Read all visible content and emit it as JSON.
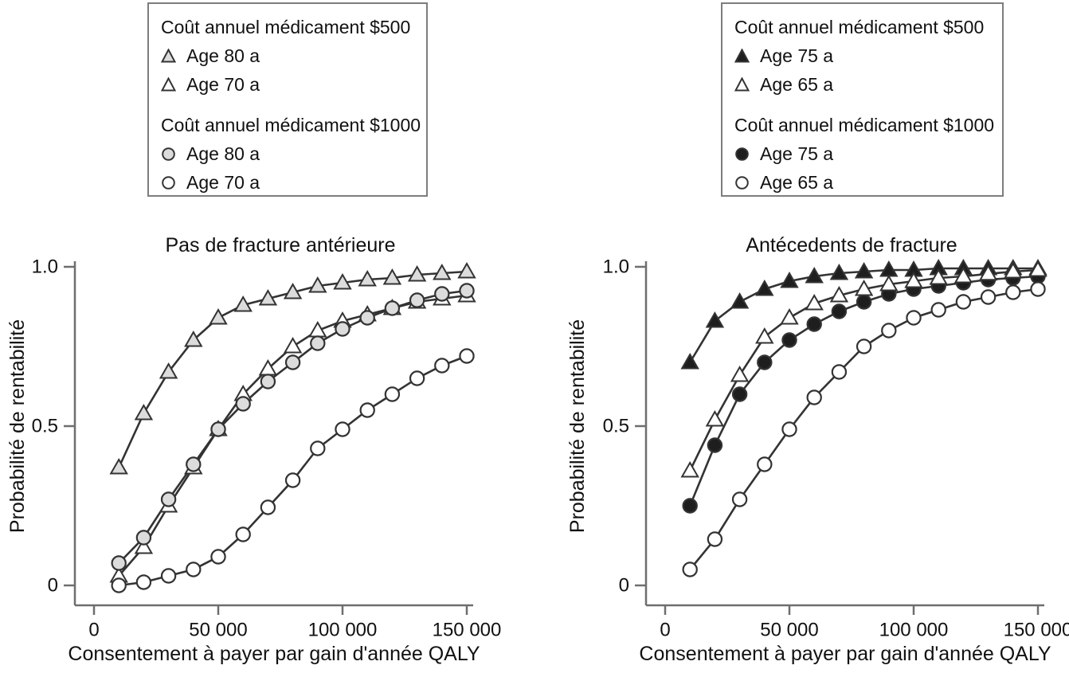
{
  "figure": {
    "background": "#ffffff",
    "text_color": "#111111",
    "axis_color": "#6e6e6e",
    "series_stroke": "#333333",
    "legend_border_color": "#7d7d7d",
    "gray_fill": "#dcdcdc",
    "black_fill": "#1e1e1e",
    "white_fill": "#ffffff"
  },
  "legends": [
    {
      "name": "legend-no-prior-fracture",
      "groups": [
        {
          "header": "Coût annuel médicament $500",
          "items": [
            {
              "marker": "triangle",
              "fill": "#dcdcdc",
              "label": "Age 80 a"
            },
            {
              "marker": "triangle",
              "fill": "#ffffff",
              "label": "Age 70 a"
            }
          ]
        },
        {
          "header": "Coût annuel médicament $1000",
          "items": [
            {
              "marker": "circle",
              "fill": "#dcdcdc",
              "label": "Age 80 a"
            },
            {
              "marker": "circle",
              "fill": "#ffffff",
              "label": "Age 70 a"
            }
          ]
        }
      ]
    },
    {
      "name": "legend-prior-fracture",
      "groups": [
        {
          "header": "Coût annuel médicament $500",
          "items": [
            {
              "marker": "triangle",
              "fill": "#1e1e1e",
              "label": "Age 75 a"
            },
            {
              "marker": "triangle",
              "fill": "#ffffff",
              "label": "Age 65 a"
            }
          ]
        },
        {
          "header": "Coût annuel médicament $1000",
          "items": [
            {
              "marker": "circle",
              "fill": "#1e1e1e",
              "label": "Age 75 a"
            },
            {
              "marker": "circle",
              "fill": "#ffffff",
              "label": "Age 65 a"
            }
          ]
        }
      ]
    }
  ],
  "chart_data": [
    {
      "type": "line",
      "title": "Pas de fracture antérieure",
      "xlabel": "Consentement à payer par gain d'année QALY",
      "ylabel": "Probabilité de rentabilité",
      "xlim": [
        0,
        155000
      ],
      "ylim": [
        0,
        1.0
      ],
      "xticks": [
        0,
        50000,
        100000,
        150000
      ],
      "xtick_labels": [
        "0",
        "50 000",
        "100 000",
        "150 000"
      ],
      "yticks": [
        0,
        0.5,
        1.0
      ],
      "ytick_labels": [
        "0",
        "0.5",
        "1.0"
      ],
      "grid": false,
      "legend_position": "outside-top",
      "x": [
        10000,
        20000,
        30000,
        40000,
        50000,
        60000,
        70000,
        80000,
        90000,
        100000,
        110000,
        120000,
        130000,
        140000,
        150000
      ],
      "series": [
        {
          "name": "Age 70 a",
          "cost_group": "$500",
          "marker": "triangle",
          "fill": "#ffffff",
          "values": [
            0.03,
            0.12,
            0.25,
            0.37,
            0.49,
            0.6,
            0.68,
            0.75,
            0.8,
            0.83,
            0.85,
            0.87,
            0.89,
            0.9,
            0.91
          ]
        },
        {
          "name": "Age 80 a",
          "cost_group": "$1000",
          "marker": "circle",
          "fill": "#dcdcdc",
          "values": [
            0.07,
            0.15,
            0.27,
            0.38,
            0.49,
            0.57,
            0.64,
            0.7,
            0.76,
            0.805,
            0.84,
            0.87,
            0.895,
            0.915,
            0.925
          ]
        },
        {
          "name": "Age 80 a",
          "cost_group": "$500",
          "marker": "triangle",
          "fill": "#dcdcdc",
          "values": [
            0.37,
            0.54,
            0.67,
            0.77,
            0.84,
            0.88,
            0.9,
            0.92,
            0.94,
            0.95,
            0.96,
            0.965,
            0.975,
            0.98,
            0.985
          ]
        },
        {
          "name": "Age 70 a",
          "cost_group": "$1000",
          "marker": "circle",
          "fill": "#ffffff",
          "values": [
            0.0,
            0.01,
            0.03,
            0.05,
            0.09,
            0.16,
            0.245,
            0.33,
            0.43,
            0.49,
            0.55,
            0.6,
            0.65,
            0.69,
            0.72
          ]
        }
      ]
    },
    {
      "type": "line",
      "title": "Antécedents de fracture",
      "xlabel": "Consentement à payer par gain d'année QALY",
      "ylabel": "Probabilité de rentabilité",
      "xlim": [
        0,
        155000
      ],
      "ylim": [
        0,
        1.0
      ],
      "xticks": [
        0,
        50000,
        100000,
        150000
      ],
      "xtick_labels": [
        "0",
        "50 000",
        "100 000",
        "150 000"
      ],
      "yticks": [
        0,
        0.5,
        1.0
      ],
      "ytick_labels": [
        "0",
        "0.5",
        "1.0"
      ],
      "grid": false,
      "legend_position": "outside-top",
      "x": [
        10000,
        20000,
        30000,
        40000,
        50000,
        60000,
        70000,
        80000,
        90000,
        100000,
        110000,
        120000,
        130000,
        140000,
        150000
      ],
      "series": [
        {
          "name": "Age 75 a",
          "cost_group": "$500",
          "marker": "triangle",
          "fill": "#1e1e1e",
          "values": [
            0.7,
            0.83,
            0.89,
            0.93,
            0.955,
            0.97,
            0.98,
            0.985,
            0.99,
            0.99,
            0.995,
            0.995,
            0.995,
            0.995,
            0.995
          ]
        },
        {
          "name": "Age 75 a",
          "cost_group": "$1000",
          "marker": "circle",
          "fill": "#1e1e1e",
          "values": [
            0.25,
            0.44,
            0.6,
            0.7,
            0.77,
            0.82,
            0.86,
            0.89,
            0.915,
            0.93,
            0.94,
            0.95,
            0.96,
            0.965,
            0.97
          ]
        },
        {
          "name": "Age 65 a",
          "cost_group": "$1000",
          "marker": "circle",
          "fill": "#ffffff",
          "values": [
            0.05,
            0.145,
            0.27,
            0.38,
            0.49,
            0.59,
            0.67,
            0.75,
            0.8,
            0.84,
            0.865,
            0.89,
            0.905,
            0.92,
            0.93
          ]
        },
        {
          "name": "Age 65 a",
          "cost_group": "$500",
          "marker": "triangle",
          "fill": "#ffffff",
          "values": [
            0.36,
            0.52,
            0.66,
            0.78,
            0.84,
            0.885,
            0.91,
            0.93,
            0.945,
            0.955,
            0.965,
            0.97,
            0.978,
            0.985,
            0.99
          ]
        }
      ]
    }
  ]
}
